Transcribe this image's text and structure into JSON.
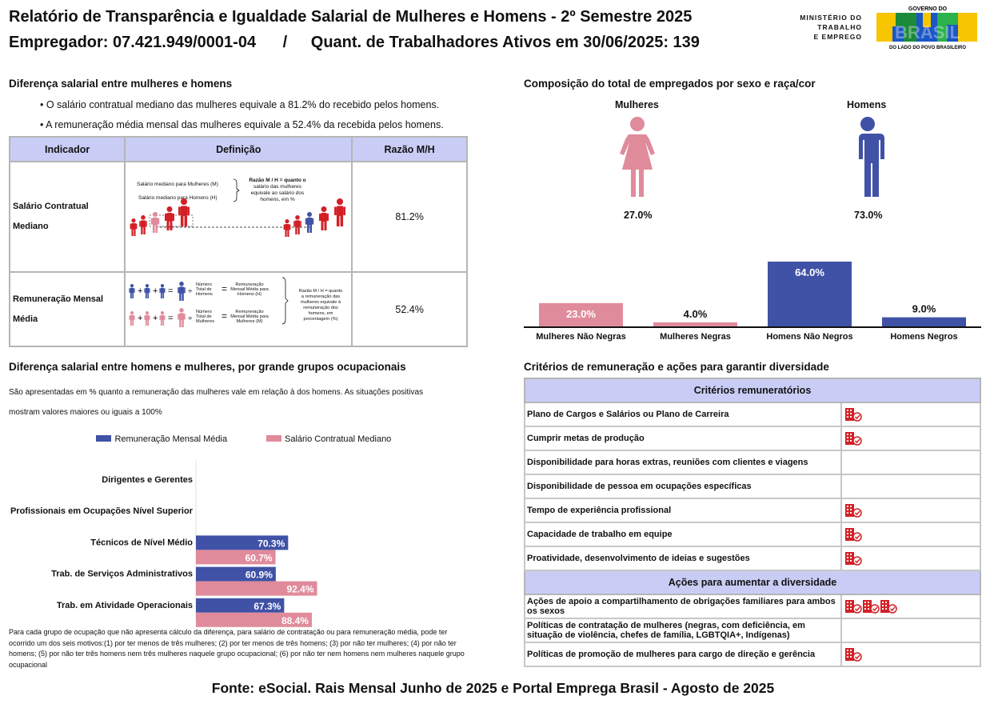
{
  "header": {
    "title": "Relatório de Transparência e Igualdade Salarial de Mulheres e Homens - 2º Semestre 2025",
    "employer": "Empregador: 07.421.949/0001-04",
    "separator": "/",
    "workers": "Quant. de Trabalhadores Ativos em 30/06/2025: 139",
    "ministry": [
      "MINISTÉRIO DO",
      "TRABALHO",
      "E EMPREGO"
    ],
    "gov_top": "GOVERNO DO",
    "gov_word": "BRASIL",
    "gov_bottom": "DO LADO DO POVO BRASILEIRO"
  },
  "salary_gap": {
    "title": "Diferença salarial entre mulheres e homens",
    "bullets": [
      "• O salário contratual mediano das mulheres equivale a 81.2% do recebido pelos homens.",
      "• A remuneração média mensal das mulheres equivale a 52.4% da recebida pelos homens."
    ],
    "table": {
      "headers": [
        "Indicador",
        "Definição",
        "Razão M/H"
      ],
      "rows": [
        {
          "indicator": "Salário Contratual Mediano",
          "ratio": "81.2%",
          "def": {
            "women": "Salário mediano para Mulheres (M)",
            "men": "Salário mediano para Homens (H)",
            "explain": [
              "Razão M / H = quanto o",
              "salário das mulheres",
              "equivale ao salário dos",
              "homens, em %"
            ]
          }
        },
        {
          "indicator": [
            "Remuneração Mensal",
            "Média"
          ],
          "ratio": "52.4%",
          "def": {
            "count_men": [
              "Número",
              "Total de",
              "Homens"
            ],
            "avg_men": [
              "Remuneração",
              "Mensal Média para",
              "Homens (H)"
            ],
            "count_women": [
              "Número",
              "Total de",
              "Mulheres"
            ],
            "avg_women": [
              "Remuneração",
              "Mensal Média para",
              "Mulheres (M)"
            ],
            "explain": [
              "Razão M / H = quanto",
              "a remuneração das",
              "mulheres equivale à",
              "remuneração dos",
              "homens, em",
              "porcentagem (%)"
            ]
          }
        }
      ]
    }
  },
  "composition": {
    "title": "Composição do total de empregados por sexo e raça/cor",
    "women_label": "Mulheres",
    "men_label": "Homens",
    "women_pct": "27.0%",
    "men_pct": "73.0%",
    "chart_data": {
      "type": "bar",
      "categories": [
        "Mulheres Não Negras",
        "Mulheres Negras",
        "Homens Não Negros",
        "Homens Negros"
      ],
      "values": [
        23.0,
        4.0,
        64.0,
        9.0
      ],
      "value_labels": [
        "23.0%",
        "4.0%",
        "64.0%",
        "9.0%"
      ],
      "colors": [
        "#e08b9b",
        "#e08b9b",
        "#4052a6",
        "#4052a6"
      ],
      "ylim": [
        0,
        64
      ]
    }
  },
  "occupations": {
    "title": "Diferença salarial entre homens e mulheres, por grande grupos ocupacionais",
    "desc": [
      "São apresentadas em % quanto a remuneração das mulheres vale em relação à dos homens. As situações positivas",
      "mostram valores maiores ou iguais a 100%"
    ],
    "chart_data": {
      "type": "bar",
      "orientation": "horizontal",
      "categories": [
        "Dirigentes e Gerentes",
        "Profissionais em Ocupações Nível Superior",
        "Técnicos de Nível Médio",
        "Trab. de Serviços Administrativos",
        "Trab. em Atividade Operacionais"
      ],
      "series": [
        {
          "name": "Remuneração Mensal Média",
          "color": "#4052a6",
          "values": [
            null,
            null,
            70.3,
            60.9,
            67.3
          ],
          "labels": [
            "",
            "",
            "70.3%",
            "60.9%",
            "67.3%"
          ]
        },
        {
          "name": "Salário Contratual Mediano",
          "color": "#e08b9b",
          "values": [
            null,
            null,
            60.7,
            92.4,
            88.4
          ],
          "labels": [
            "",
            "",
            "60.7%",
            "92.4%",
            "88.4%"
          ]
        }
      ]
    },
    "note": "Para cada grupo de ocupação que não apresenta cálculo da diferença, para salário de contratação ou para remuneração média, pode ter ocorrido um dos seis motivos:(1) por ter menos de três mulheres; (2) por ter menos de três homens; (3) por não ter mulheres; (4) por não ter homens; (5) por não ter três homens nem três mulheres naquele grupo ocupacional; (6) por não ter nem homens nem mulheres naquele grupo ocupacional"
  },
  "criteria": {
    "title": "Critérios de remuneração e ações para garantir diversidade",
    "header1": "Critérios remuneratórios",
    "items1": [
      {
        "label": "Plano de Cargos e Salários ou Plano de Carreira",
        "icons": 1
      },
      {
        "label": "Cumprir metas de produção",
        "icons": 1
      },
      {
        "label": "Disponibilidade para horas extras, reuniões com clientes e viagens",
        "icons": 0
      },
      {
        "label": "Disponibilidade de pessoa em ocupações específicas",
        "icons": 0
      },
      {
        "label": "Tempo de experiência profissional",
        "icons": 1
      },
      {
        "label": "Capacidade de trabalho em equipe",
        "icons": 1
      },
      {
        "label": "Proatividade, desenvolvimento de ideias e sugestões",
        "icons": 1
      }
    ],
    "header2": "Ações para aumentar a diversidade",
    "items2": [
      {
        "label": "Ações de apoio a compartilhamento de obrigações familiares para ambos os sexos",
        "icons": 3
      },
      {
        "label": "Políticas de contratação de mulheres (negras, com deficiência, em situação de violência, chefes de família, LGBTQIA+, Indígenas)",
        "icons": 0
      },
      {
        "label": "Políticas de promoção de mulheres para cargo de direção e gerência",
        "icons": 1
      }
    ],
    "icon_name": "building-check-icon",
    "icon_color": "#d32027"
  },
  "footer": "Fonte: eSocial. Rais Mensal Junho de 2025 e Portal Emprega Brasil - Agosto de 2025"
}
